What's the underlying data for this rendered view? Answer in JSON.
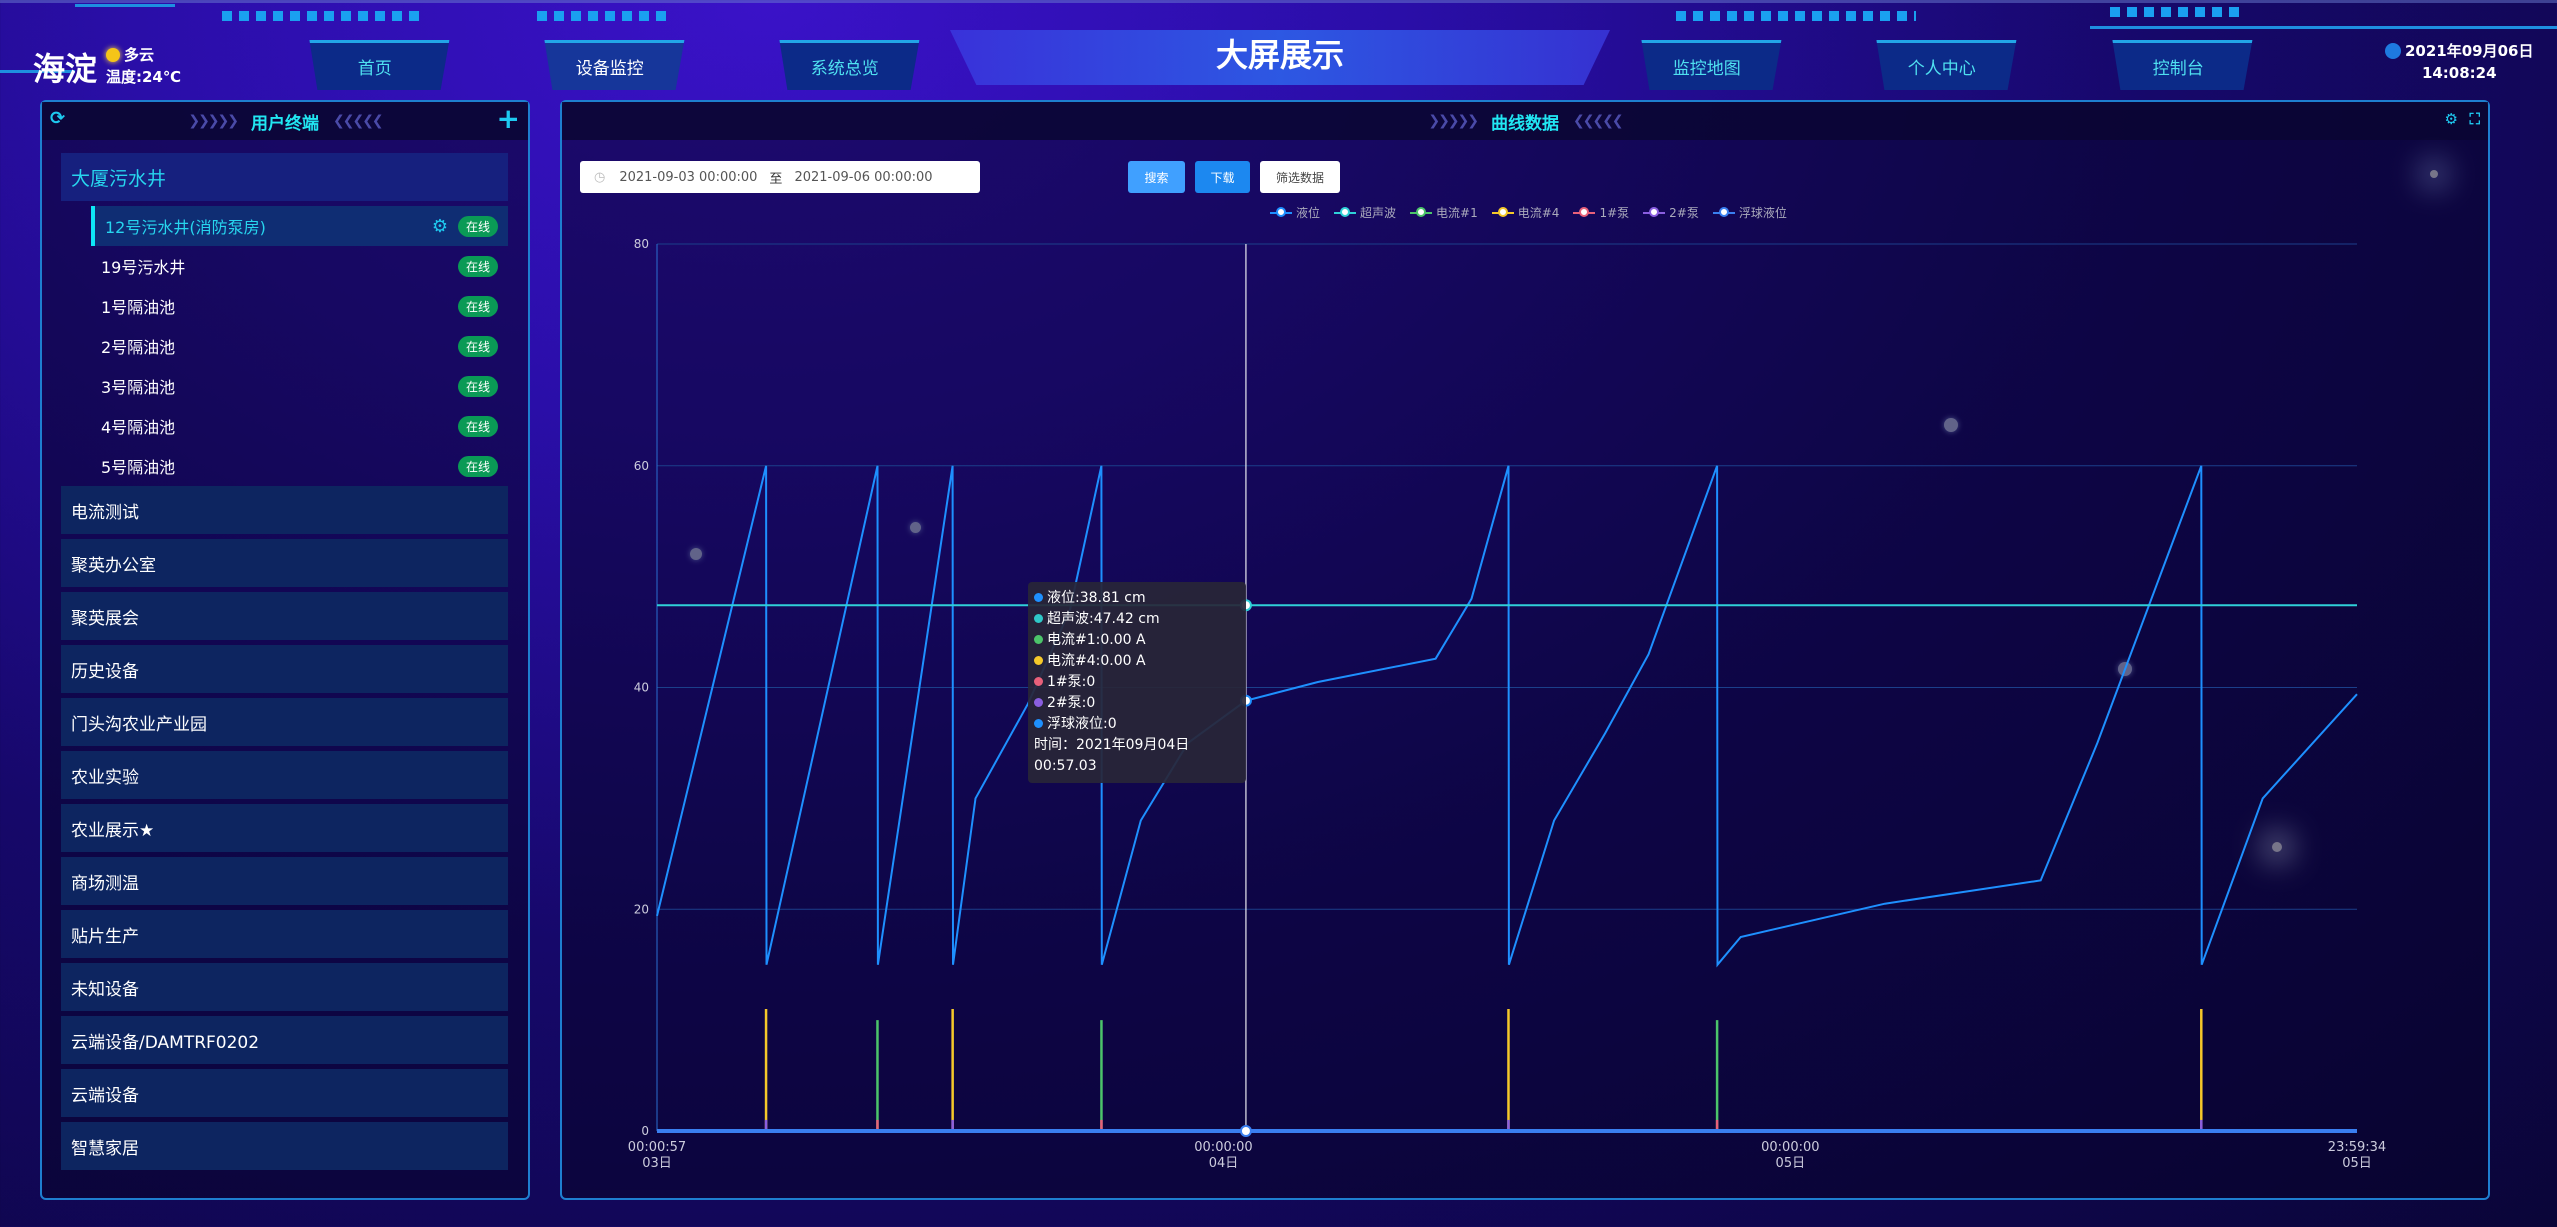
{
  "header": {
    "city": "海淀",
    "weather": "多云",
    "temperature": "温度:24℃",
    "title": "大屏展示",
    "date": "2021年09月06日",
    "time": "14:08:24",
    "nav": [
      {
        "label": "首页"
      },
      {
        "label": "设备监控",
        "active": true
      },
      {
        "label": "系统总览"
      },
      {
        "label": "监控地图"
      },
      {
        "label": "个人中心"
      },
      {
        "label": "控制台"
      }
    ]
  },
  "sidebar": {
    "title": "用户终端",
    "refresh_icon": "refresh-icon",
    "add_icon": "plus-icon",
    "open_group": "大厦污水井",
    "children": [
      {
        "label": "12号污水井(消防泵房)",
        "status": "在线",
        "selected": true
      },
      {
        "label": "19号污水井",
        "status": "在线"
      },
      {
        "label": "1号隔油池",
        "status": "在线"
      },
      {
        "label": "2号隔油池",
        "status": "在线"
      },
      {
        "label": "3号隔油池",
        "status": "在线"
      },
      {
        "label": "4号隔油池",
        "status": "在线"
      },
      {
        "label": "5号隔油池",
        "status": "在线"
      }
    ],
    "groups": [
      "电流测试",
      "聚英办公室",
      "聚英展会",
      "历史设备",
      "门头沟农业产业园",
      "农业实验",
      "农业展示★",
      "商场测温",
      "贴片生产",
      "未知设备",
      "云端设备/DAMTRF0202",
      "云端设备",
      "智慧家居"
    ]
  },
  "chart_panel": {
    "title": "曲线数据",
    "start": "2021-09-03 00:00:00",
    "separator": "至",
    "end": "2021-09-06 00:00:00",
    "search": "搜索",
    "download": "下载",
    "filter": "筛选数据"
  },
  "tooltip": {
    "rows": [
      {
        "text": "液位:38.81 cm",
        "color": "#1e90ff"
      },
      {
        "text": "超声波:47.42 cm",
        "color": "#2fc8c8"
      },
      {
        "text": "电流#1:0.00 A",
        "color": "#4cc46a"
      },
      {
        "text": "电流#4:0.00 A",
        "color": "#f5c82a"
      },
      {
        "text": "1#泵:0",
        "color": "#e8607a"
      },
      {
        "text": "2#泵:0",
        "color": "#8a5ee0"
      },
      {
        "text": "浮球液位:0",
        "color": "#1e90ff"
      }
    ],
    "time": "时间：2021年09月04日 00:57.03"
  },
  "chart_data": {
    "type": "line",
    "ylim": [
      0,
      80
    ],
    "yticks": [
      0,
      20,
      40,
      60,
      80
    ],
    "grid": true,
    "legend_position": "top-right",
    "xlim": [
      "2021-09-03 00:00:57",
      "2021-09-05 23:59:34"
    ],
    "xticks": [
      {
        "t": "2021-09-03 00:00:57",
        "l1": "00:00:57",
        "l2": "03日"
      },
      {
        "t": "2021-09-04 00:00:00",
        "l1": "00:00:00",
        "l2": "04日"
      },
      {
        "t": "2021-09-05 00:00:00",
        "l1": "00:00:00",
        "l2": "05日"
      },
      {
        "t": "2021-09-05 23:59:34",
        "l1": "23:59:34",
        "l2": "05日"
      }
    ],
    "cursor": "2021-09-04 00:57:03",
    "series": [
      {
        "name": "液位",
        "color": "#1e90ff",
        "points": [
          [
            "2021-09-03 00:00:57",
            19.4
          ],
          [
            "2021-09-03 04:38:00",
            60
          ],
          [
            "2021-09-03 04:39:00",
            15
          ],
          [
            "2021-09-03 09:21:00",
            60
          ],
          [
            "2021-09-03 09:22:00",
            15
          ],
          [
            "2021-09-03 12:32:00",
            60
          ],
          [
            "2021-09-03 12:33:00",
            15
          ],
          [
            "2021-09-03 13:30:00",
            30
          ],
          [
            "2021-09-03 15:43:00",
            38.5
          ],
          [
            "2021-09-03 17:30:00",
            47
          ],
          [
            "2021-09-03 18:50:00",
            60
          ],
          [
            "2021-09-03 18:51:00",
            15
          ],
          [
            "2021-09-03 20:30:00",
            28
          ],
          [
            "2021-09-03 22:30:00",
            35
          ],
          [
            "2021-09-04 00:57:03",
            38.81
          ],
          [
            "2021-09-04 04:00:00",
            40.5
          ],
          [
            "2021-09-04 08:59:00",
            42.6
          ],
          [
            "2021-09-04 10:30:00",
            48
          ],
          [
            "2021-09-04 12:04:00",
            60
          ],
          [
            "2021-09-04 12:05:00",
            15
          ],
          [
            "2021-09-04 14:00:00",
            28
          ],
          [
            "2021-09-04 16:10:00",
            35.9
          ],
          [
            "2021-09-04 18:00:00",
            43
          ],
          [
            "2021-09-04 20:54:00",
            60
          ],
          [
            "2021-09-04 20:55:00",
            15
          ],
          [
            "2021-09-04 21:54:00",
            17.5
          ],
          [
            "2021-09-05 04:00:00",
            20.5
          ],
          [
            "2021-09-05 10:36:00",
            22.6
          ],
          [
            "2021-09-05 13:00:00",
            35
          ],
          [
            "2021-09-05 17:24:00",
            60
          ],
          [
            "2021-09-05 17:25:00",
            15
          ],
          [
            "2021-09-05 20:00:00",
            30
          ],
          [
            "2021-09-05 23:59:34",
            39.4
          ]
        ]
      },
      {
        "name": "超声波",
        "color": "#2fd0d8",
        "points": [
          [
            "2021-09-03 00:00:57",
            47.42
          ],
          [
            "2021-09-05 23:59:34",
            47.42
          ]
        ]
      },
      {
        "name": "电流#1",
        "color": "#4cc46a",
        "spikes": [
          [
            "2021-09-03 09:21:00",
            10
          ],
          [
            "2021-09-03 18:50:00",
            10
          ],
          [
            "2021-09-04 20:54:00",
            10
          ]
        ]
      },
      {
        "name": "电流#4",
        "color": "#f5c82a",
        "spikes": [
          [
            "2021-09-03 04:38:00",
            11
          ],
          [
            "2021-09-03 12:32:00",
            11
          ],
          [
            "2021-09-04 12:04:00",
            11
          ],
          [
            "2021-09-05 17:24:00",
            11
          ]
        ]
      },
      {
        "name": "1#泵",
        "color": "#e8607a",
        "spikes": [
          [
            "2021-09-03 09:21:00",
            1
          ],
          [
            "2021-09-03 18:50:00",
            1
          ],
          [
            "2021-09-04 20:54:00",
            1
          ]
        ]
      },
      {
        "name": "2#泵",
        "color": "#8a5ee0",
        "spikes": [
          [
            "2021-09-03 04:38:00",
            1
          ],
          [
            "2021-09-03 12:32:00",
            1
          ],
          [
            "2021-09-04 12:04:00",
            1
          ],
          [
            "2021-09-05 17:24:00",
            1
          ]
        ]
      },
      {
        "name": "浮球液位",
        "color": "#3a7ff0",
        "points": [
          [
            "2021-09-03 00:00:57",
            0
          ],
          [
            "2021-09-05 23:59:34",
            0
          ]
        ]
      }
    ]
  }
}
